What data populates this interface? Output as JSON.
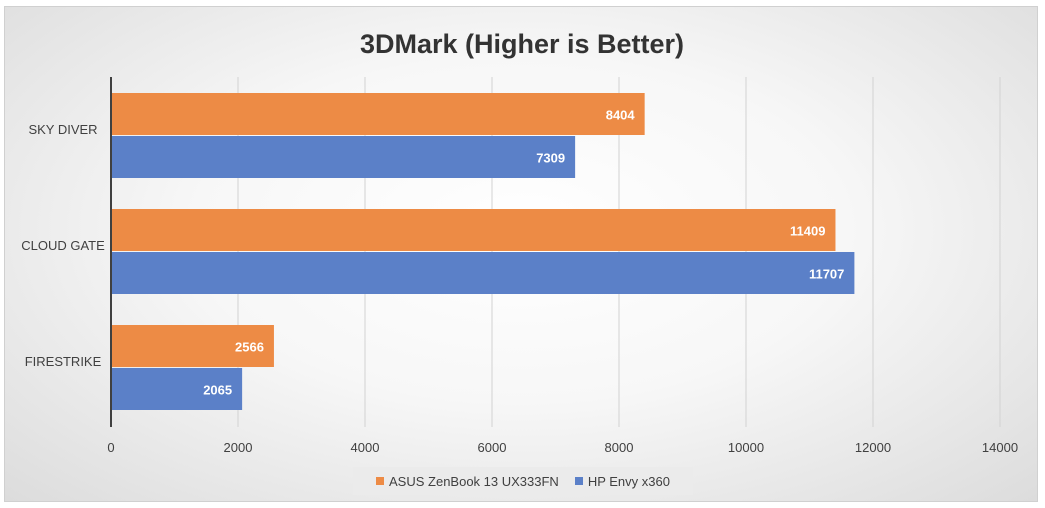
{
  "chart_data": {
    "type": "bar",
    "orientation": "horizontal",
    "title": "3DMark (Higher is Better)",
    "xlabel": "",
    "ylabel": "",
    "categories": [
      "SKY DIVER",
      "CLOUD GATE",
      "FIRESTRIKE"
    ],
    "series": [
      {
        "name": "ASUS ZenBook 13 UX333FN",
        "color": "#ED8B45",
        "values": [
          8404,
          11409,
          2566
        ]
      },
      {
        "name": "HP Envy x360",
        "color": "#5B80C8",
        "values": [
          7309,
          11707,
          2065
        ]
      }
    ],
    "xlim": [
      0,
      14000
    ],
    "xticks": [
      0,
      2000,
      4000,
      6000,
      8000,
      10000,
      12000,
      14000
    ],
    "grid": true,
    "legend_position": "bottom"
  }
}
